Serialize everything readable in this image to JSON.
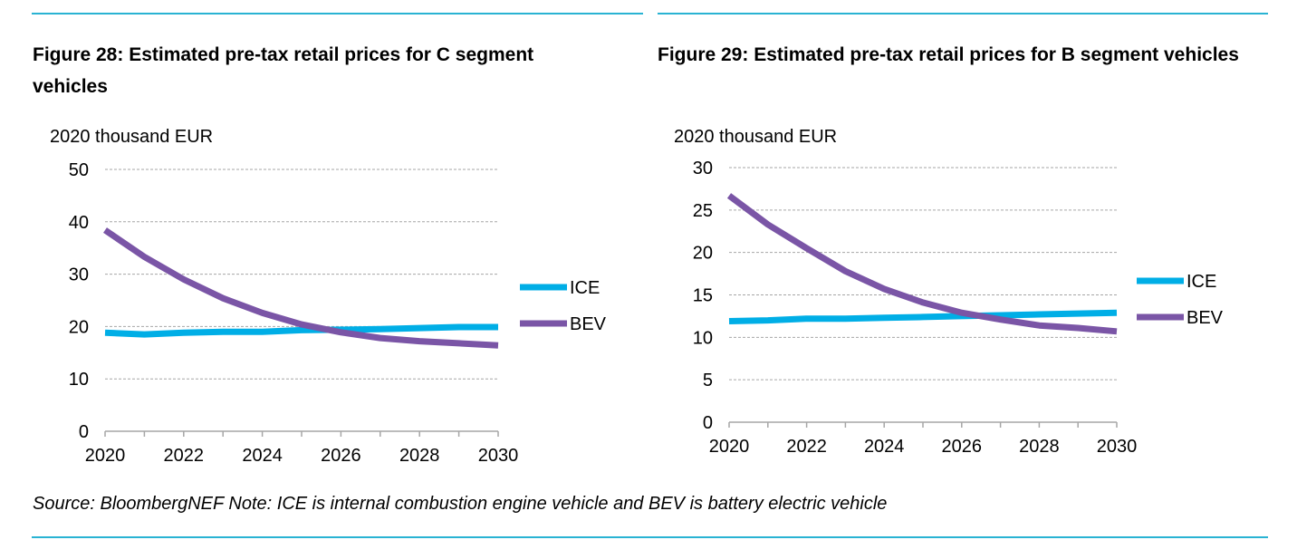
{
  "colors": {
    "rule": "#29b3d3",
    "ice": "#00aee6",
    "bev": "#7a55a6",
    "grid": "#a6a6a6",
    "axis": "#a6a6a6"
  },
  "figures": {
    "left": {
      "title": "Figure 28: Estimated pre-tax retail prices for C segment vehicles",
      "unit": "2020 thousand EUR"
    },
    "right": {
      "title": "Figure 29: Estimated pre-tax retail prices for B segment vehicles",
      "unit": "2020 thousand EUR"
    }
  },
  "source_note": "Source: BloombergNEF Note: ICE is internal combustion engine vehicle and BEV is battery electric vehicle",
  "chart_data": [
    {
      "type": "line",
      "title": "Figure 28: Estimated pre-tax retail prices for C segment vehicles",
      "ylabel": "2020 thousand EUR",
      "x": [
        2020,
        2021,
        2022,
        2023,
        2024,
        2025,
        2026,
        2027,
        2028,
        2029,
        2030
      ],
      "xticks": [
        "2020",
        "2022",
        "2024",
        "2026",
        "2028",
        "2030"
      ],
      "xlim": [
        2020,
        2030
      ],
      "ylim": [
        0,
        50
      ],
      "yticks": [
        "0",
        "10",
        "20",
        "30",
        "40",
        "50"
      ],
      "grid": true,
      "legend_position": "right",
      "series": [
        {
          "name": "ICE",
          "values": [
            18.8,
            18.5,
            18.8,
            19.0,
            19.0,
            19.3,
            19.4,
            19.5,
            19.7,
            19.9,
            19.9
          ]
        },
        {
          "name": "BEV",
          "values": [
            38.4,
            33.3,
            29.0,
            25.4,
            22.6,
            20.4,
            18.9,
            17.8,
            17.2,
            16.8,
            16.4
          ]
        }
      ]
    },
    {
      "type": "line",
      "title": "Figure 29: Estimated pre-tax retail prices for B segment vehicles",
      "ylabel": "2020 thousand EUR",
      "x": [
        2020,
        2021,
        2022,
        2023,
        2024,
        2025,
        2026,
        2027,
        2028,
        2029,
        2030
      ],
      "xticks": [
        "2020",
        "2022",
        "2024",
        "2026",
        "2028",
        "2030"
      ],
      "xlim": [
        2020,
        2030
      ],
      "ylim": [
        0,
        30
      ],
      "yticks": [
        "0",
        "5",
        "10",
        "15",
        "20",
        "25",
        "30"
      ],
      "grid": true,
      "legend_position": "right",
      "series": [
        {
          "name": "ICE",
          "values": [
            11.9,
            12.0,
            12.2,
            12.2,
            12.3,
            12.4,
            12.5,
            12.6,
            12.7,
            12.8,
            12.9
          ]
        },
        {
          "name": "BEV",
          "values": [
            26.7,
            23.3,
            20.5,
            17.8,
            15.7,
            14.1,
            12.9,
            12.1,
            11.4,
            11.1,
            10.7
          ]
        }
      ]
    }
  ]
}
